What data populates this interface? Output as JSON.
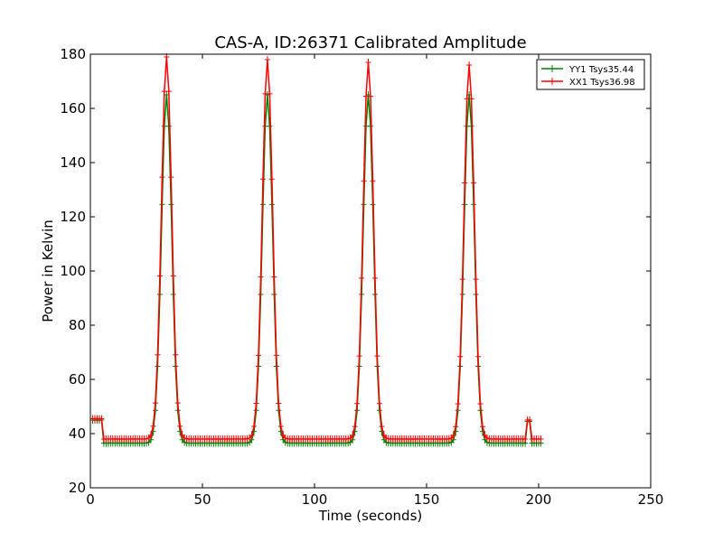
{
  "chart_data": {
    "type": "line",
    "title": "CAS-A, ID:26371 Calibrated Amplitude",
    "xlabel": "Time (seconds)",
    "ylabel": "Power in Kelvin",
    "xlim": [
      0,
      250
    ],
    "ylim": [
      20,
      180
    ],
    "xticks": [
      0,
      50,
      100,
      150,
      200,
      250
    ],
    "yticks": [
      20,
      40,
      60,
      80,
      100,
      120,
      140,
      160,
      180
    ],
    "grid": false,
    "legend_position": "top-right",
    "markers": "plus",
    "series": [
      {
        "name": "YY1 Tsys35.44",
        "color": "#008000",
        "peaks": [
          {
            "center": 34,
            "height": 165
          },
          {
            "center": 79,
            "height": 165
          },
          {
            "center": 124,
            "height": 165
          },
          {
            "center": 169,
            "height": 165
          }
        ],
        "baseline": 36.5,
        "noise_segments": [
          {
            "x": [
              1,
              2,
              3,
              4,
              5
            ],
            "y": 45
          },
          {
            "x": [
              195,
              196
            ],
            "y": 44.5
          }
        ],
        "range": [
          1,
          201
        ]
      },
      {
        "name": "XX1 Tsys36.98",
        "color": "#ff0000",
        "peaks": [
          {
            "center": 34,
            "height": 179
          },
          {
            "center": 79,
            "height": 178
          },
          {
            "center": 124,
            "height": 177
          },
          {
            "center": 169,
            "height": 176
          }
        ],
        "baseline": 38,
        "noise_segments": [
          {
            "x": [
              1,
              2,
              3,
              4,
              5
            ],
            "y": 45.5
          },
          {
            "x": [
              195,
              196
            ],
            "y": 45
          }
        ],
        "range": [
          1,
          201
        ]
      }
    ]
  }
}
